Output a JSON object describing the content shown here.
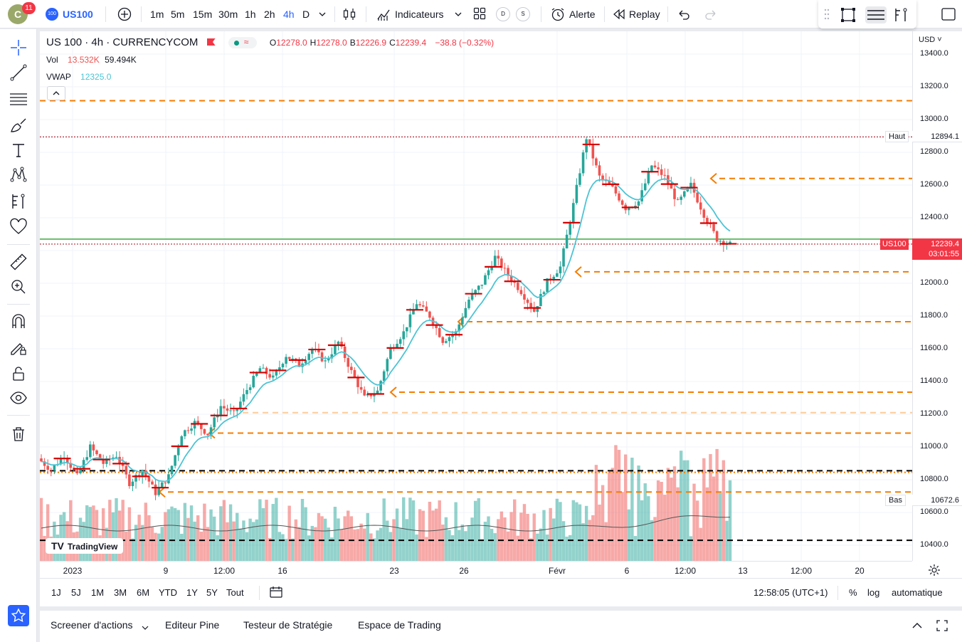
{
  "topbar": {
    "avatar_letter": "C",
    "notification_count": "11",
    "symbol_icon_text": "100",
    "symbol": "US100",
    "intervals": [
      "1m",
      "5m",
      "15m",
      "30m",
      "1h",
      "2h",
      "4h",
      "D"
    ],
    "active_interval": "4h",
    "indicators_label": "Indicateurs",
    "layout_d": "D",
    "layout_s": "S",
    "alert_label": "Alerte",
    "replay_label": "Replay"
  },
  "legend": {
    "title": "US 100 · 4h · CURRENCYCOM",
    "ohlc": [
      {
        "k": "O",
        "v": "12278.0"
      },
      {
        "k": "H",
        "v": "12278.0"
      },
      {
        "k": "B",
        "v": "12226.9"
      },
      {
        "k": "C",
        "v": "12239.4"
      }
    ],
    "change": "−38.8 (−0.32%)",
    "vol_label": "Vol",
    "vol_value": "13.532K",
    "vol_ma": "59.494K",
    "vwap_label": "VWAP",
    "vwap_value": "12325.0"
  },
  "price_axis": {
    "currency": "USD",
    "ticks": [
      "13400.0",
      "13200.0",
      "13000.0",
      "12800.0",
      "12600.0",
      "12400.0",
      "12200.0",
      "12000.0",
      "11800.0",
      "11600.0",
      "11400.0",
      "11200.0",
      "11000.0",
      "10800.0",
      "10600.0",
      "10400.0"
    ],
    "high_label": "Haut",
    "high_value": "12894.1",
    "low_label": "Bas",
    "low_value": "10672.6",
    "symbol_tag": "US100",
    "last_price": "12239.4",
    "countdown": "03:01:55"
  },
  "time_axis": {
    "ticks": [
      "2023",
      "9",
      "12:00",
      "16",
      "23",
      "26",
      "Févr",
      "6",
      "12:00",
      "13",
      "12:00",
      "20"
    ]
  },
  "range_bar": {
    "ranges": [
      "1J",
      "5J",
      "1M",
      "3M",
      "6M",
      "YTD",
      "1Y",
      "5Y",
      "Tout"
    ],
    "clock": "12:58:05 (UTC+1)",
    "percent_label": "%",
    "log_label": "log",
    "auto_label": "automatique"
  },
  "bottom_panel": {
    "tabs": [
      "Screener d'actions",
      "Editeur Pine",
      "Testeur de Stratégie",
      "Espace de Trading"
    ]
  },
  "watermark": "TradingView",
  "colors": {
    "up": "#26a69a",
    "down": "#ef5350",
    "vwap": "#4dc4d4",
    "accent": "#2962ff",
    "level_orange": "#f57c00",
    "support_green": "#4caf50"
  },
  "chart_data": {
    "type": "candlestick",
    "symbol": "US100",
    "interval": "4h",
    "ylim": [
      10300,
      13500
    ],
    "horizontal_levels": [
      {
        "price": 13115,
        "style": "dashed",
        "color": "#f57c00"
      },
      {
        "price": 12640,
        "style": "dashed",
        "color": "#f57c00"
      },
      {
        "price": 12270,
        "style": "solid",
        "color": "#4caf50"
      },
      {
        "price": 12070,
        "style": "dashed",
        "color": "#f57c00"
      },
      {
        "price": 11765,
        "style": "dashed",
        "color": "#f57c00"
      },
      {
        "price": 11335,
        "style": "dashed",
        "color": "#f57c00"
      },
      {
        "price": 11210,
        "style": "dashed",
        "color": "#ffcc99"
      },
      {
        "price": 11085,
        "style": "dashed",
        "color": "#f57c00"
      },
      {
        "price": 10855,
        "style": "dashed",
        "color": "#000000"
      },
      {
        "price": 10845,
        "style": "dotted",
        "color": "#f57c00"
      },
      {
        "price": 10725,
        "style": "dashed",
        "color": "#f57c00"
      },
      {
        "price": 10430,
        "style": "dashed",
        "color": "#000000"
      }
    ],
    "path": [
      10930,
      10860,
      10950,
      10820,
      11000,
      10900,
      10950,
      10780,
      10860,
      10720,
      10820,
      11080,
      11150,
      11080,
      11250,
      11200,
      11350,
      11480,
      11420,
      11560,
      11500,
      11600,
      11520,
      11640,
      11460,
      11300,
      11340,
      11600,
      11700,
      11880,
      11800,
      11650,
      11700,
      11900,
      12000,
      12160,
      12050,
      11950,
      11830,
      12010,
      12100,
      12480,
      12890,
      12650,
      12580,
      12460,
      12500,
      12720,
      12650,
      12490,
      12600,
      12420,
      12270,
      12239
    ]
  }
}
